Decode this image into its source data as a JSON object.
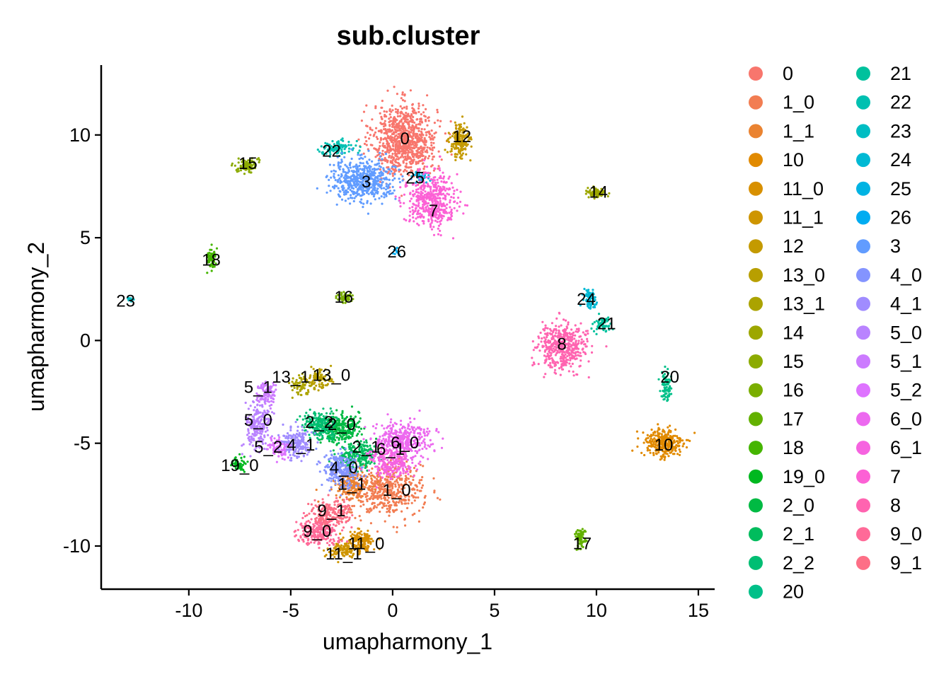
{
  "chart_data": {
    "type": "scatter",
    "title": "sub.cluster",
    "xlabel": "umapharmony_1",
    "ylabel": "umapharmony_2",
    "xlim": [
      -14.3,
      15.8
    ],
    "ylim": [
      -12.1,
      13.4
    ],
    "x_ticks": [
      -10,
      -5,
      0,
      5,
      10,
      15
    ],
    "y_ticks": [
      -10,
      -5,
      0,
      5,
      10
    ],
    "x_tick_labels": [
      "-10",
      "-5",
      "0",
      "5",
      "10",
      "15"
    ],
    "y_tick_labels": [
      "-10",
      "-5",
      "0",
      "5",
      "10"
    ],
    "grid": false,
    "legend_position": "right",
    "legend_columns": 2,
    "clusters": [
      {
        "name": "0",
        "color": "#F8766D",
        "x": 0.6,
        "y": 9.8,
        "sx": 1.3,
        "sy": 1.4,
        "n": 900,
        "label_x": 0.6,
        "label_y": 9.8
      },
      {
        "name": "1_0",
        "color": "#F27D52",
        "x": -0.3,
        "y": -7.3,
        "sx": 1.5,
        "sy": 1.1,
        "n": 500,
        "label_x": 0.2,
        "label_y": -7.3
      },
      {
        "name": "1_1",
        "color": "#EA8331",
        "x": -2.0,
        "y": -7.0,
        "sx": 0.7,
        "sy": 0.5,
        "n": 160,
        "label_x": -2.0,
        "label_y": -7.0
      },
      {
        "name": "10",
        "color": "#E18A00",
        "x": 13.3,
        "y": -5.0,
        "sx": 0.8,
        "sy": 0.6,
        "n": 300,
        "label_x": 13.3,
        "label_y": -5.1
      },
      {
        "name": "11_0",
        "color": "#D89000",
        "x": -1.6,
        "y": -9.8,
        "sx": 0.6,
        "sy": 0.5,
        "n": 140,
        "label_x": -1.3,
        "label_y": -9.9
      },
      {
        "name": "11_1",
        "color": "#CE9500",
        "x": -2.5,
        "y": -10.2,
        "sx": 0.6,
        "sy": 0.3,
        "n": 100,
        "label_x": -2.4,
        "label_y": -10.4
      },
      {
        "name": "12",
        "color": "#C49A00",
        "x": 3.3,
        "y": 9.7,
        "sx": 0.4,
        "sy": 0.7,
        "n": 180,
        "label_x": 3.4,
        "label_y": 9.9
      },
      {
        "name": "13_0",
        "color": "#B89F00",
        "x": -3.6,
        "y": -1.9,
        "sx": 0.5,
        "sy": 0.4,
        "n": 90,
        "label_x": -3.0,
        "label_y": -1.7
      },
      {
        "name": "13_1",
        "color": "#ABA300",
        "x": -4.6,
        "y": -2.2,
        "sx": 0.4,
        "sy": 0.4,
        "n": 60,
        "label_x": -5.0,
        "label_y": -1.8
      },
      {
        "name": "14",
        "color": "#9DA700",
        "x": 10.0,
        "y": 7.2,
        "sx": 0.4,
        "sy": 0.2,
        "n": 90,
        "label_x": 10.1,
        "label_y": 7.2
      },
      {
        "name": "15",
        "color": "#8CAB00",
        "x": -7.1,
        "y": 8.5,
        "sx": 0.4,
        "sy": 0.3,
        "n": 90,
        "label_x": -7.1,
        "label_y": 8.6
      },
      {
        "name": "16",
        "color": "#7AAE00",
        "x": -2.4,
        "y": 2.1,
        "sx": 0.3,
        "sy": 0.2,
        "n": 60,
        "label_x": -2.4,
        "label_y": 2.1
      },
      {
        "name": "17",
        "color": "#63B100",
        "x": 9.2,
        "y": -9.6,
        "sx": 0.2,
        "sy": 0.5,
        "n": 70,
        "label_x": 9.3,
        "label_y": -9.9
      },
      {
        "name": "18",
        "color": "#45B500",
        "x": -8.9,
        "y": 4.0,
        "sx": 0.2,
        "sy": 0.4,
        "n": 60,
        "label_x": -8.9,
        "label_y": 3.9
      },
      {
        "name": "19_0",
        "color": "#00B81F",
        "x": -7.5,
        "y": -6.0,
        "sx": 0.3,
        "sy": 0.3,
        "n": 50,
        "label_x": -7.5,
        "label_y": -6.1
      },
      {
        "name": "2_0",
        "color": "#00BA43",
        "x": -2.6,
        "y": -4.3,
        "sx": 0.8,
        "sy": 0.6,
        "n": 260,
        "label_x": -2.5,
        "label_y": -4.1
      },
      {
        "name": "2_1",
        "color": "#00BC5D",
        "x": -1.7,
        "y": -5.6,
        "sx": 0.8,
        "sy": 0.5,
        "n": 220,
        "label_x": -1.3,
        "label_y": -5.2
      },
      {
        "name": "2_2",
        "color": "#00BE73",
        "x": -3.5,
        "y": -4.1,
        "sx": 0.7,
        "sy": 0.5,
        "n": 200,
        "label_x": -3.6,
        "label_y": -4.0
      },
      {
        "name": "20",
        "color": "#00C089",
        "x": 13.4,
        "y": -2.2,
        "sx": 0.2,
        "sy": 0.6,
        "n": 80,
        "label_x": 13.6,
        "label_y": -1.8
      },
      {
        "name": "21",
        "color": "#00C19D",
        "x": 10.3,
        "y": 0.8,
        "sx": 0.4,
        "sy": 0.3,
        "n": 60,
        "label_x": 10.5,
        "label_y": 0.8
      },
      {
        "name": "22",
        "color": "#00C0B1",
        "x": -2.7,
        "y": 9.4,
        "sx": 0.7,
        "sy": 0.3,
        "n": 90,
        "label_x": -3.0,
        "label_y": 9.2
      },
      {
        "name": "23",
        "color": "#00BDC3",
        "x": -12.9,
        "y": 2.0,
        "sx": 0.15,
        "sy": 0.1,
        "n": 15,
        "label_x": -13.1,
        "label_y": 1.9
      },
      {
        "name": "24",
        "color": "#00B9D4",
        "x": 9.7,
        "y": 2.0,
        "sx": 0.3,
        "sy": 0.4,
        "n": 70,
        "label_x": 9.5,
        "label_y": 2.0
      },
      {
        "name": "25",
        "color": "#00B3E3",
        "x": 1.5,
        "y": 8.0,
        "sx": 0.4,
        "sy": 0.2,
        "n": 30,
        "label_x": 1.1,
        "label_y": 7.9
      },
      {
        "name": "26",
        "color": "#00ACF1",
        "x": 0.2,
        "y": 4.3,
        "sx": 0.15,
        "sy": 0.15,
        "n": 12,
        "label_x": 0.2,
        "label_y": 4.3
      },
      {
        "name": "3",
        "color": "#619CFF",
        "x": -1.5,
        "y": 7.8,
        "sx": 1.3,
        "sy": 0.8,
        "n": 550,
        "label_x": -1.3,
        "label_y": 7.7
      },
      {
        "name": "4_0",
        "color": "#8494FF",
        "x": -2.5,
        "y": -6.3,
        "sx": 0.7,
        "sy": 0.7,
        "n": 240,
        "label_x": -2.4,
        "label_y": -6.2
      },
      {
        "name": "4_1",
        "color": "#A08CFF",
        "x": -4.7,
        "y": -5.0,
        "sx": 0.6,
        "sy": 0.6,
        "n": 180,
        "label_x": -4.5,
        "label_y": -5.1
      },
      {
        "name": "5_0",
        "color": "#B983FF",
        "x": -6.6,
        "y": -4.1,
        "sx": 0.5,
        "sy": 1.0,
        "n": 220,
        "label_x": -6.6,
        "label_y": -3.9
      },
      {
        "name": "5_1",
        "color": "#CC7BFF",
        "x": -6.2,
        "y": -2.6,
        "sx": 0.4,
        "sy": 0.5,
        "n": 100,
        "label_x": -6.6,
        "label_y": -2.3
      },
      {
        "name": "5_2",
        "color": "#DE73FF",
        "x": -5.6,
        "y": -5.2,
        "sx": 0.4,
        "sy": 0.4,
        "n": 80,
        "label_x": -6.1,
        "label_y": -5.2
      },
      {
        "name": "6_0",
        "color": "#EC69EF",
        "x": 0.4,
        "y": -4.9,
        "sx": 1.2,
        "sy": 0.8,
        "n": 380,
        "label_x": 0.6,
        "label_y": -5.0
      },
      {
        "name": "6_1",
        "color": "#F663E0",
        "x": -0.1,
        "y": -6.0,
        "sx": 0.9,
        "sy": 0.6,
        "n": 220,
        "label_x": -0.1,
        "label_y": -5.3
      },
      {
        "name": "7",
        "color": "#FC61D5",
        "x": 1.9,
        "y": 6.8,
        "sx": 1.0,
        "sy": 1.1,
        "n": 450,
        "label_x": 2.0,
        "label_y": 6.3
      },
      {
        "name": "8",
        "color": "#FF64B0",
        "x": 8.3,
        "y": -0.3,
        "sx": 1.0,
        "sy": 0.9,
        "n": 450,
        "label_x": 8.3,
        "label_y": -0.2
      },
      {
        "name": "9_0",
        "color": "#FF6A98",
        "x": -3.7,
        "y": -9.3,
        "sx": 0.9,
        "sy": 0.5,
        "n": 240,
        "label_x": -3.7,
        "label_y": -9.3
      },
      {
        "name": "9_1",
        "color": "#FD6F86",
        "x": -3.0,
        "y": -8.4,
        "sx": 0.8,
        "sy": 0.5,
        "n": 200,
        "label_x": -3.0,
        "label_y": -8.3
      }
    ]
  }
}
